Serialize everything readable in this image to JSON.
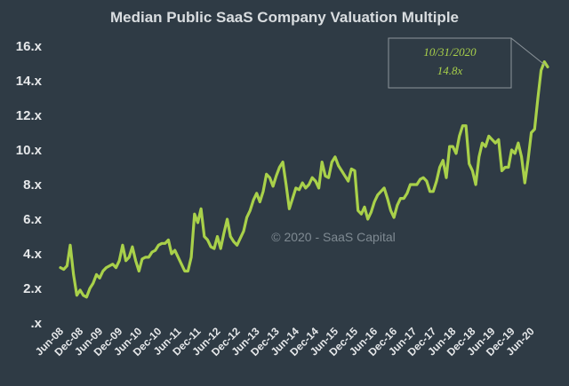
{
  "chart_data": {
    "type": "line",
    "title": "Median Public SaaS Company Valuation Multiple",
    "xlabel": "",
    "ylabel": "",
    "ylim": [
      0,
      16
    ],
    "y_ticks": [
      ".x",
      "2.x",
      "4.x",
      "6.x",
      "8.x",
      "10.x",
      "12.x",
      "14.x",
      "16.x"
    ],
    "x_ticks": [
      "Jun-08",
      "Dec-08",
      "Jun-09",
      "Dec-09",
      "Jun-10",
      "Dec-10",
      "Jun-11",
      "Dec-11",
      "Jun-12",
      "Dec-12",
      "Jun-13",
      "Dec-13",
      "Jun-14",
      "Dec-14",
      "Jun-15",
      "Dec-15",
      "Jun-16",
      "Dec-16",
      "Jun-17",
      "Dec-17",
      "Jun-18",
      "Dec-18",
      "Jun-19",
      "Dec-19",
      "Jun-20"
    ],
    "grid": false,
    "line_color": "#a9d14a",
    "series": [
      {
        "start": "2008-06",
        "values": [
          3.2,
          3.1,
          3.3,
          4.5,
          2.8,
          1.6,
          1.9,
          1.6,
          1.5,
          2.0,
          2.3,
          2.8,
          2.6,
          3.0,
          3.2,
          3.3,
          3.4,
          3.2,
          3.6,
          4.5,
          3.6,
          3.8,
          4.4,
          3.6,
          3.0,
          3.7,
          3.8,
          3.8,
          4.1,
          4.2,
          4.5,
          4.6,
          4.6,
          4.8,
          4.0,
          4.2,
          3.8,
          3.4,
          3.0,
          3.0,
          3.8,
          6.3,
          5.8,
          6.6,
          5.0,
          4.8,
          4.4,
          4.3,
          5.0,
          4.3,
          5.2,
          6.0,
          5.0,
          4.7,
          4.5,
          4.9,
          5.3,
          6.1,
          6.5,
          7.1,
          7.5,
          7.0,
          7.6,
          8.6,
          8.4,
          7.9,
          8.5,
          9.0,
          9.3,
          8.0,
          6.6,
          7.2,
          7.8,
          7.7,
          8.1,
          7.8,
          8.0,
          8.4,
          8.2,
          7.8,
          9.3,
          8.5,
          8.4,
          9.3,
          9.6,
          9.1,
          8.8,
          8.5,
          8.2,
          8.9,
          8.8,
          6.5,
          6.3,
          6.7,
          6.0,
          6.4,
          7.0,
          7.4,
          7.6,
          7.8,
          7.2,
          6.5,
          6.1,
          6.8,
          7.2,
          7.2,
          7.5,
          8.0,
          8.0,
          8.0,
          8.3,
          8.4,
          8.2,
          7.6,
          7.6,
          8.2,
          9.0,
          9.4,
          8.4,
          10.2,
          10.2,
          9.8,
          10.8,
          11.4,
          11.4,
          9.2,
          8.8,
          8.0,
          9.6,
          10.4,
          10.2,
          10.8,
          10.6,
          10.4,
          10.6,
          8.8,
          9.0,
          9.0,
          10.0,
          9.8,
          10.4,
          9.6,
          8.1,
          9.4,
          11.0,
          11.2,
          13.0,
          14.6,
          15.1,
          14.8
        ]
      }
    ],
    "annotation": {
      "line1": "10/31/2020",
      "line2": "14.8x"
    },
    "watermark": "© 2020 - SaaS Capital"
  }
}
